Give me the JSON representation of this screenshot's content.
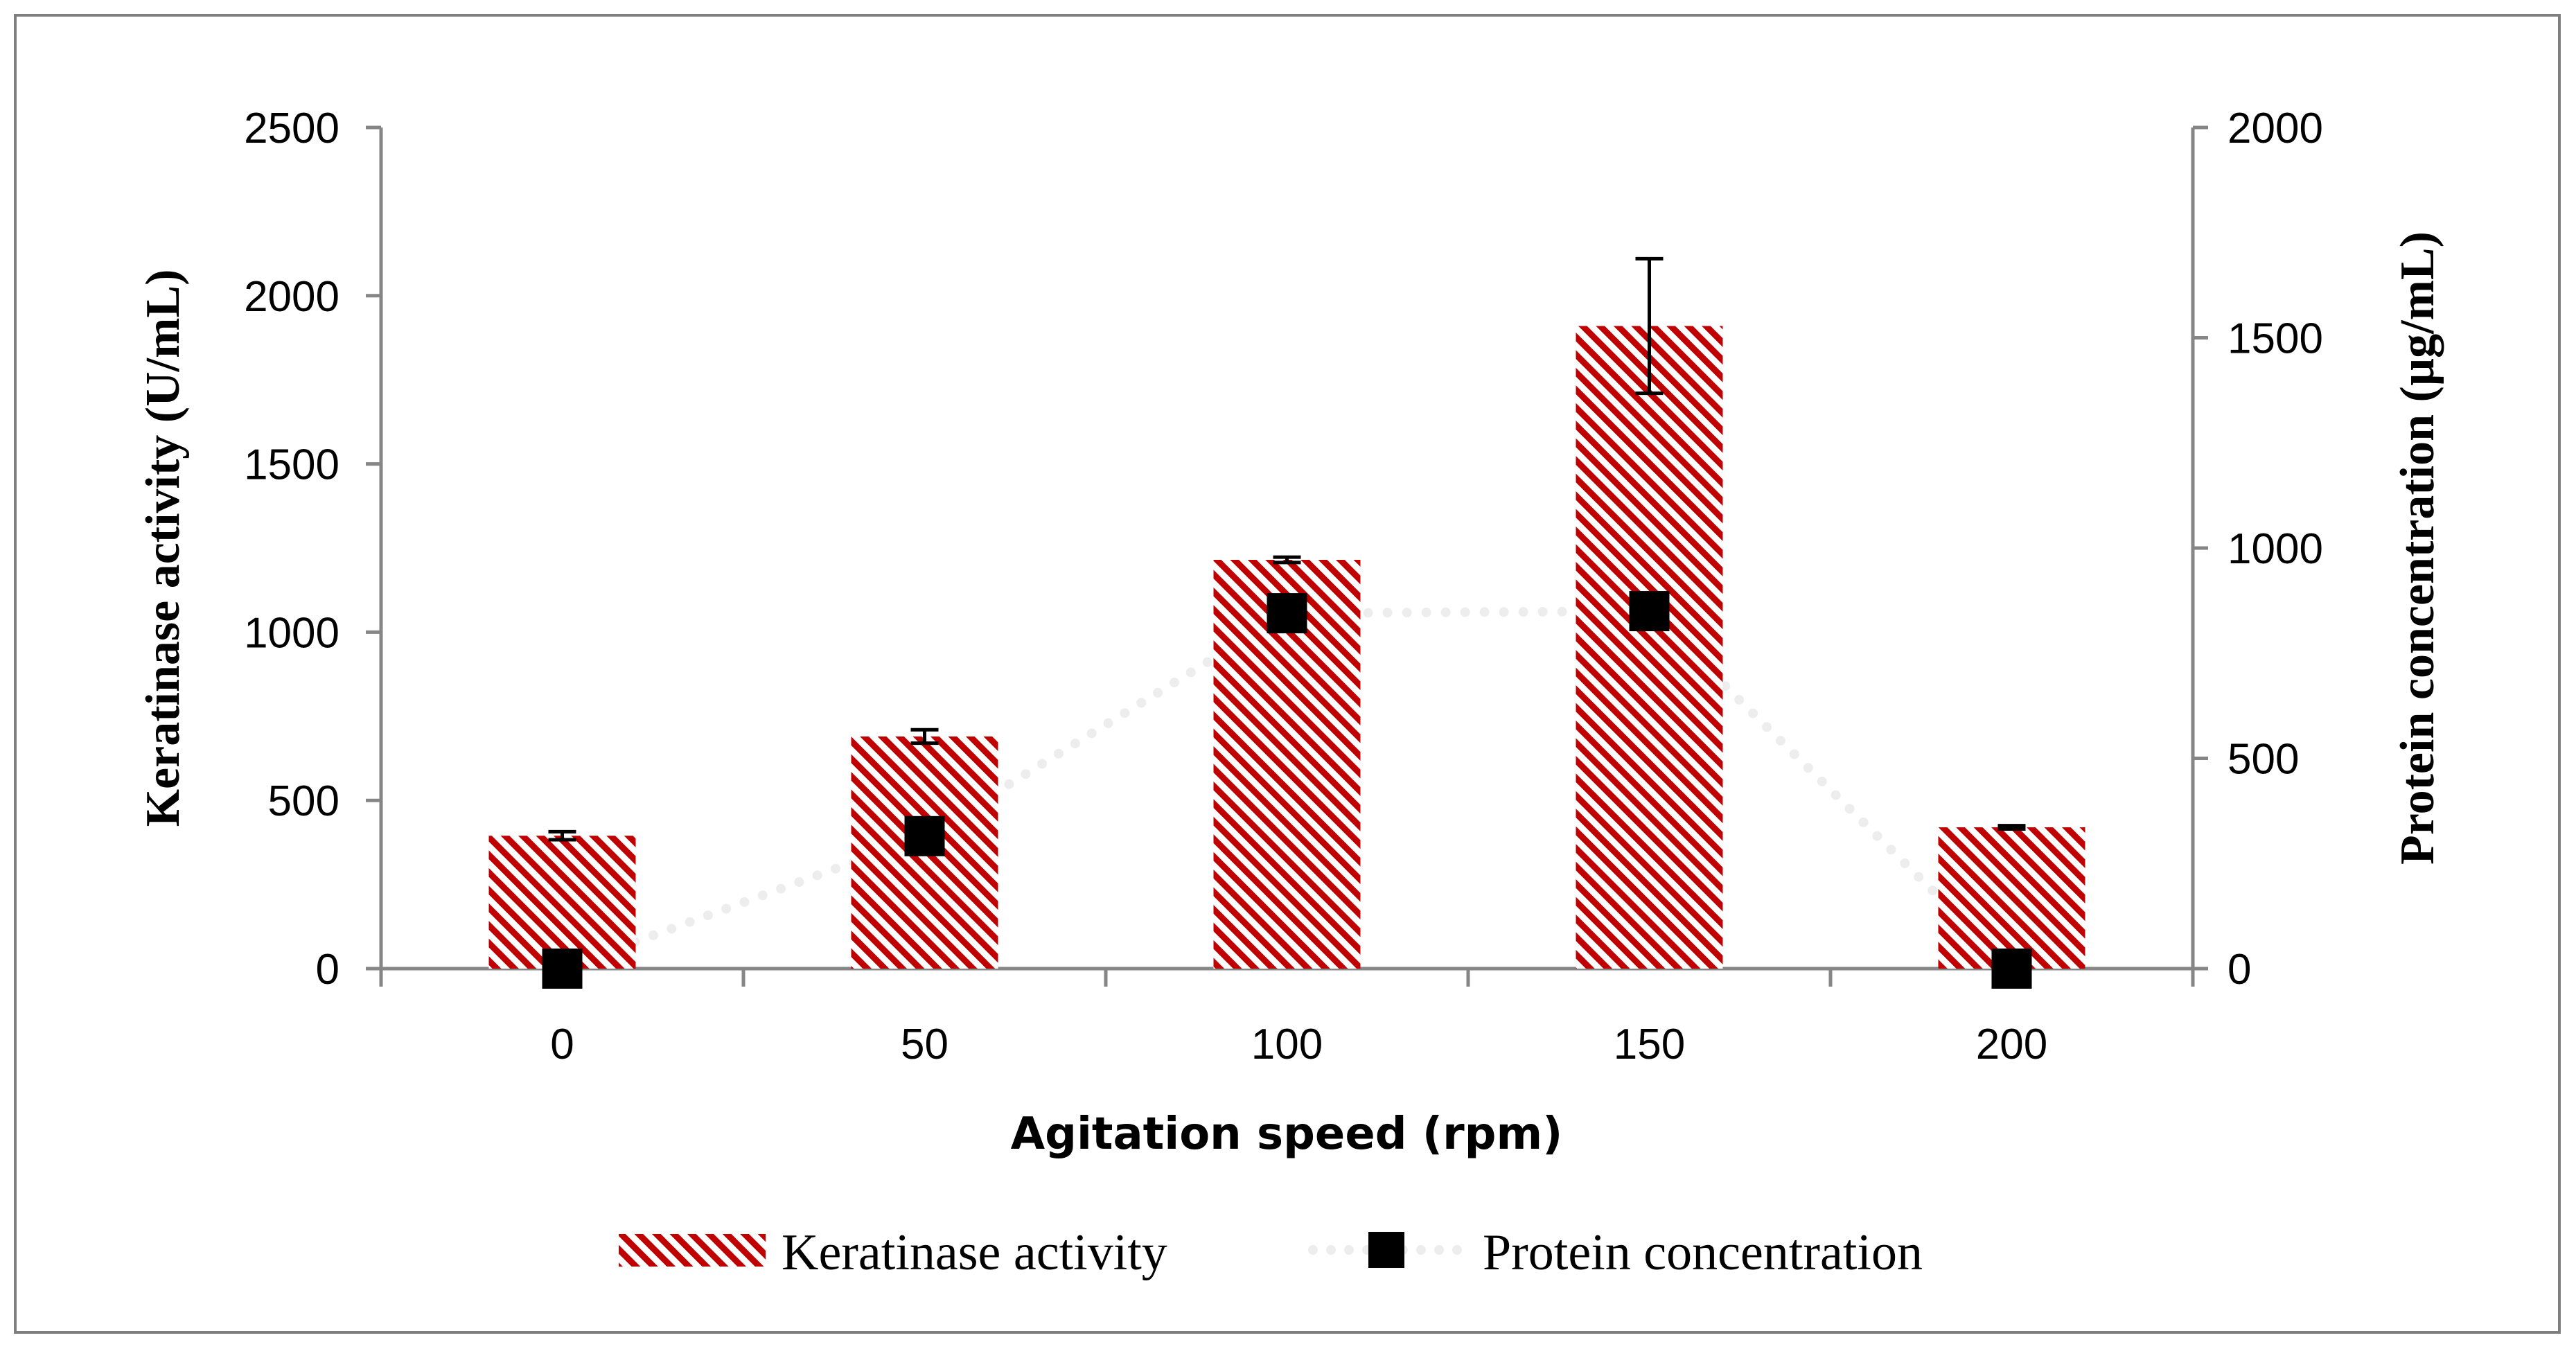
{
  "chart_data": {
    "type": "bar",
    "title": "",
    "xlabel": "Agitation speed (rpm)",
    "categories": [
      "0",
      "50",
      "100",
      "150",
      "200"
    ],
    "left_axis": {
      "label": "Keratinase activity (U/mL)",
      "ylim": [
        0,
        2500
      ],
      "ticks": [
        0,
        500,
        1000,
        1500,
        2000,
        2500
      ]
    },
    "right_axis": {
      "label": "Protein concentration (µg/mL)",
      "ylim": [
        0,
        2000
      ],
      "ticks": [
        0,
        500,
        1000,
        1500,
        2000
      ]
    },
    "series": [
      {
        "name": "Keratinase activity",
        "kind": "bar",
        "axis": "left",
        "values": [
          395,
          690,
          1215,
          1910,
          420
        ],
        "errors": [
          12,
          20,
          8,
          200,
          5
        ]
      },
      {
        "name": "Protein concentration",
        "kind": "marker-dotted-line",
        "axis": "right",
        "values": [
          0,
          315,
          845,
          850,
          0
        ]
      }
    ],
    "colors": {
      "bar_hatch": "#c00000",
      "bar_background": "#ffffff",
      "marker": "#000000",
      "trend_line": "#ededed",
      "axis": "#868686",
      "frame": "#7f7f7f"
    },
    "legend": {
      "position": "bottom",
      "items": [
        "Keratinase activity",
        "Protein concentration"
      ]
    }
  }
}
